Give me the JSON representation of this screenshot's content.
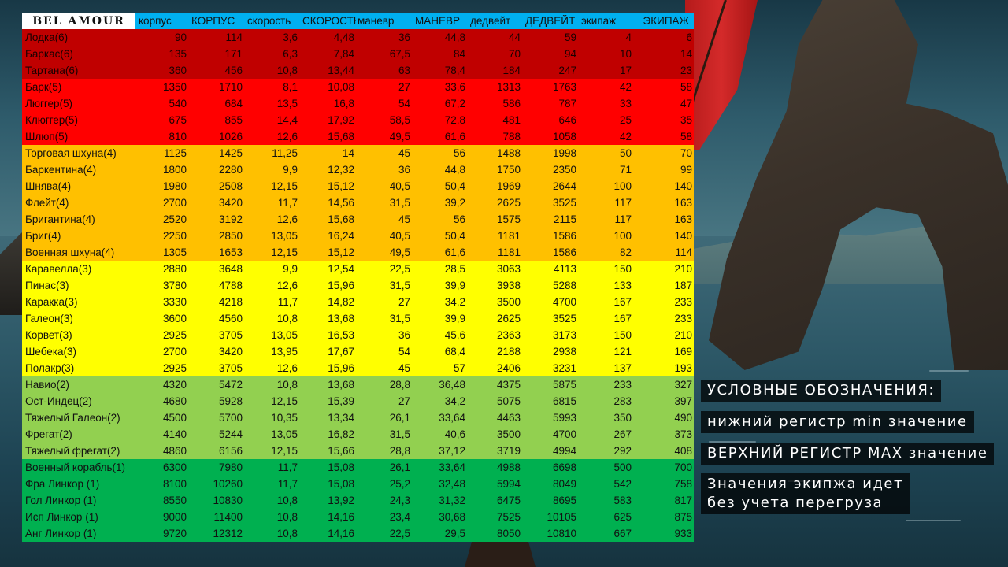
{
  "logo": "BEL AMOUR",
  "headers": [
    "корпус",
    "КОРПУС",
    "скорость",
    "СКОРОСТЬ",
    "маневр",
    "МАНЕВР",
    "дедвейт",
    "ДЕДВЕЙТ",
    "экипаж",
    "ЭКИПАЖ"
  ],
  "tier_colors": {
    "6": "#c00000",
    "5": "#ff0000",
    "4": "#ffc000",
    "3": "#ffff00",
    "2": "#92d050",
    "1": "#00b050"
  },
  "ships": [
    {
      "tier": 6,
      "name": "Лодка(6)",
      "v": [
        "90",
        "114",
        "3,6",
        "4,48",
        "36",
        "44,8",
        "44",
        "59",
        "4",
        "6"
      ]
    },
    {
      "tier": 6,
      "name": "Баркас(6)",
      "v": [
        "135",
        "171",
        "6,3",
        "7,84",
        "67,5",
        "84",
        "70",
        "94",
        "10",
        "14"
      ]
    },
    {
      "tier": 6,
      "name": "Тартана(6)",
      "v": [
        "360",
        "456",
        "10,8",
        "13,44",
        "63",
        "78,4",
        "184",
        "247",
        "17",
        "23"
      ]
    },
    {
      "tier": 5,
      "name": "Барк(5)",
      "v": [
        "1350",
        "1710",
        "8,1",
        "10,08",
        "27",
        "33,6",
        "1313",
        "1763",
        "42",
        "58"
      ]
    },
    {
      "tier": 5,
      "name": "Люггер(5)",
      "v": [
        "540",
        "684",
        "13,5",
        "16,8",
        "54",
        "67,2",
        "586",
        "787",
        "33",
        "47"
      ]
    },
    {
      "tier": 5,
      "name": "Клюггер(5)",
      "v": [
        "675",
        "855",
        "14,4",
        "17,92",
        "58,5",
        "72,8",
        "481",
        "646",
        "25",
        "35"
      ]
    },
    {
      "tier": 5,
      "name": "Шлюп(5)",
      "v": [
        "810",
        "1026",
        "12,6",
        "15,68",
        "49,5",
        "61,6",
        "788",
        "1058",
        "42",
        "58"
      ]
    },
    {
      "tier": 4,
      "name": "Торговая шхуна(4)",
      "v": [
        "1125",
        "1425",
        "11,25",
        "14",
        "45",
        "56",
        "1488",
        "1998",
        "50",
        "70"
      ]
    },
    {
      "tier": 4,
      "name": "Баркентина(4)",
      "v": [
        "1800",
        "2280",
        "9,9",
        "12,32",
        "36",
        "44,8",
        "1750",
        "2350",
        "71",
        "99"
      ]
    },
    {
      "tier": 4,
      "name": "Шнява(4)",
      "v": [
        "1980",
        "2508",
        "12,15",
        "15,12",
        "40,5",
        "50,4",
        "1969",
        "2644",
        "100",
        "140"
      ]
    },
    {
      "tier": 4,
      "name": "Флейт(4)",
      "v": [
        "2700",
        "3420",
        "11,7",
        "14,56",
        "31,5",
        "39,2",
        "2625",
        "3525",
        "117",
        "163"
      ]
    },
    {
      "tier": 4,
      "name": "Бригантина(4)",
      "v": [
        "2520",
        "3192",
        "12,6",
        "15,68",
        "45",
        "56",
        "1575",
        "2115",
        "117",
        "163"
      ]
    },
    {
      "tier": 4,
      "name": "Бриг(4)",
      "v": [
        "2250",
        "2850",
        "13,05",
        "16,24",
        "40,5",
        "50,4",
        "1181",
        "1586",
        "100",
        "140"
      ]
    },
    {
      "tier": 4,
      "name": "Военная шхуна(4)",
      "v": [
        "1305",
        "1653",
        "12,15",
        "15,12",
        "49,5",
        "61,6",
        "1181",
        "1586",
        "82",
        "114"
      ]
    },
    {
      "tier": 3,
      "name": "Каравелла(3)",
      "v": [
        "2880",
        "3648",
        "9,9",
        "12,54",
        "22,5",
        "28,5",
        "3063",
        "4113",
        "150",
        "210"
      ]
    },
    {
      "tier": 3,
      "name": "Пинас(3)",
      "v": [
        "3780",
        "4788",
        "12,6",
        "15,96",
        "31,5",
        "39,9",
        "3938",
        "5288",
        "133",
        "187"
      ]
    },
    {
      "tier": 3,
      "name": "Каракка(3)",
      "v": [
        "3330",
        "4218",
        "11,7",
        "14,82",
        "27",
        "34,2",
        "3500",
        "4700",
        "167",
        "233"
      ]
    },
    {
      "tier": 3,
      "name": "Галеон(3)",
      "v": [
        "3600",
        "4560",
        "10,8",
        "13,68",
        "31,5",
        "39,9",
        "2625",
        "3525",
        "167",
        "233"
      ]
    },
    {
      "tier": 3,
      "name": "Корвет(3)",
      "v": [
        "2925",
        "3705",
        "13,05",
        "16,53",
        "36",
        "45,6",
        "2363",
        "3173",
        "150",
        "210"
      ]
    },
    {
      "tier": 3,
      "name": "Шебека(3)",
      "v": [
        "2700",
        "3420",
        "13,95",
        "17,67",
        "54",
        "68,4",
        "2188",
        "2938",
        "121",
        "169"
      ]
    },
    {
      "tier": 3,
      "name": "Полакр(3)",
      "v": [
        "2925",
        "3705",
        "12,6",
        "15,96",
        "45",
        "57",
        "2406",
        "3231",
        "137",
        "193"
      ]
    },
    {
      "tier": 2,
      "name": "Навио(2)",
      "v": [
        "4320",
        "5472",
        "10,8",
        "13,68",
        "28,8",
        "36,48",
        "4375",
        "5875",
        "233",
        "327"
      ]
    },
    {
      "tier": 2,
      "name": "Ост-Индец(2)",
      "v": [
        "4680",
        "5928",
        "12,15",
        "15,39",
        "27",
        "34,2",
        "5075",
        "6815",
        "283",
        "397"
      ]
    },
    {
      "tier": 2,
      "name": "Тяжелый Галеон(2)",
      "v": [
        "4500",
        "5700",
        "10,35",
        "13,34",
        "26,1",
        "33,64",
        "4463",
        "5993",
        "350",
        "490"
      ]
    },
    {
      "tier": 2,
      "name": "Фрегат(2)",
      "v": [
        "4140",
        "5244",
        "13,05",
        "16,82",
        "31,5",
        "40,6",
        "3500",
        "4700",
        "267",
        "373"
      ]
    },
    {
      "tier": 2,
      "name": "Тяжелый фрегат(2)",
      "v": [
        "4860",
        "6156",
        "12,15",
        "15,66",
        "28,8",
        "37,12",
        "3719",
        "4994",
        "292",
        "408"
      ]
    },
    {
      "tier": 1,
      "name": "Военный корабль(1)",
      "v": [
        "6300",
        "7980",
        "11,7",
        "15,08",
        "26,1",
        "33,64",
        "4988",
        "6698",
        "500",
        "700"
      ]
    },
    {
      "tier": 1,
      "name": "Фра Линкор (1)",
      "v": [
        "8100",
        "10260",
        "11,7",
        "15,08",
        "25,2",
        "32,48",
        "5994",
        "8049",
        "542",
        "758"
      ]
    },
    {
      "tier": 1,
      "name": "Гол Линкор (1)",
      "v": [
        "8550",
        "10830",
        "10,8",
        "13,92",
        "24,3",
        "31,32",
        "6475",
        "8695",
        "583",
        "817"
      ]
    },
    {
      "tier": 1,
      "name": "Исп Линкор (1)",
      "v": [
        "9000",
        "11400",
        "10,8",
        "14,16",
        "23,4",
        "30,68",
        "7525",
        "10105",
        "625",
        "875"
      ]
    },
    {
      "tier": 1,
      "name": "Анг Линкор (1)",
      "v": [
        "9720",
        "12312",
        "10,8",
        "14,16",
        "22,5",
        "29,5",
        "8050",
        "10810",
        "667",
        "933"
      ]
    }
  ],
  "legend": {
    "title": "УСЛОВНЫЕ ОБОЗНАЧЕНИЯ:",
    "min": "нижний регистр min значение",
    "max": "ВЕРХНИЙ РЕГИСТР MAX значение",
    "note_line1": "Значения экипжа идет",
    "note_line2": "без учета перегруза"
  }
}
